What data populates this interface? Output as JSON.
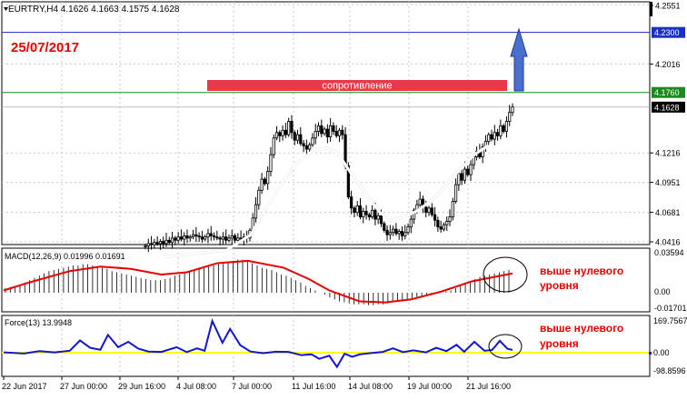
{
  "chart_window": {
    "symbol_bar": "EURTRY,H4  4.1626 4.1663 4.1575 4.1628",
    "date_label": "25/07/2017",
    "resistance_label": "сопротивление"
  },
  "colors": {
    "background": "#ffffff",
    "grid": "#c8c8c8",
    "candle": "#000000",
    "ma_line": "#ffffff",
    "level_top": "#1a2ec8",
    "level_resistance": "#1c8a1c",
    "resistance_box": "#e8394c",
    "arrow": "#4a6fd0",
    "macd_signal": "#e60000",
    "force_line": "#1515cc",
    "zero_line_force": "#ffff00",
    "annotation_text": "#e60000"
  },
  "chart_data": [
    {
      "type": "candlestick",
      "title": "EURTRY,H4",
      "ohlc_last": {
        "open": 4.1626,
        "high": 4.1663,
        "low": 4.1575,
        "close": 4.1628
      },
      "ylim": [
        4.0416,
        4.2551
      ],
      "y_ticks": [
        "4.2551",
        "4.2300",
        "4.2016",
        "4.1760",
        "4.1628",
        "4.1216",
        "4.0951",
        "4.0681",
        "4.0416"
      ],
      "horizontal_levels": [
        {
          "value": 4.23,
          "label": "4.2300"
        },
        {
          "value": 4.176,
          "label": "4.1760"
        },
        {
          "value": 4.1628,
          "label": "4.1628"
        }
      ],
      "closes": [
        4.038,
        4.04,
        4.039,
        4.041,
        4.04,
        4.042,
        4.04,
        4.043,
        4.041,
        4.045,
        4.043,
        4.046,
        4.044,
        4.047,
        4.045,
        4.046,
        4.048,
        4.047,
        4.046,
        4.044,
        4.046,
        4.049,
        4.047,
        4.046,
        4.045,
        4.044,
        4.046,
        4.043,
        4.045,
        4.047,
        4.043,
        4.045,
        4.044,
        4.046,
        4.045,
        4.052,
        4.063,
        4.075,
        4.088,
        4.098,
        4.094,
        4.105,
        4.12,
        4.135,
        4.14,
        4.137,
        4.142,
        4.138,
        4.15,
        4.14,
        4.133,
        4.138,
        4.13,
        4.128,
        4.125,
        4.129,
        4.135,
        4.141,
        4.146,
        4.139,
        4.143,
        4.136,
        4.146,
        4.141,
        4.137,
        4.142,
        4.138,
        4.11,
        4.082,
        4.072,
        4.068,
        4.074,
        4.064,
        4.069,
        4.066,
        4.064,
        4.07,
        4.062,
        4.065,
        4.058,
        4.052,
        4.048,
        4.05,
        4.053,
        4.049,
        4.051,
        4.047,
        4.05,
        4.055,
        4.062,
        4.07,
        4.075,
        4.08,
        4.073,
        4.068,
        4.072,
        4.066,
        4.061,
        4.055,
        4.053,
        4.057,
        4.06,
        4.064,
        4.078,
        4.093,
        4.103,
        4.097,
        4.107,
        4.102,
        4.111,
        4.118,
        4.123,
        4.118,
        4.127,
        4.132,
        4.138,
        4.134,
        4.14,
        4.137,
        4.146,
        4.141,
        4.15,
        4.158,
        4.163
      ],
      "moving_average": [
        {
          "x": 0.0,
          "y": 4.028
        },
        {
          "x": 0.18,
          "y": 4.034
        },
        {
          "x": 0.25,
          "y": 4.048
        },
        {
          "x": 0.28,
          "y": 4.065
        },
        {
          "x": 0.33,
          "y": 4.09
        },
        {
          "x": 0.38,
          "y": 4.112
        },
        {
          "x": 0.43,
          "y": 4.124
        },
        {
          "x": 0.47,
          "y": 4.126
        },
        {
          "x": 0.5,
          "y": 4.121
        },
        {
          "x": 0.54,
          "y": 4.102
        },
        {
          "x": 0.58,
          "y": 4.085
        },
        {
          "x": 0.62,
          "y": 4.068
        },
        {
          "x": 0.65,
          "y": 4.061
        },
        {
          "x": 0.69,
          "y": 4.064
        },
        {
          "x": 0.73,
          "y": 4.07
        },
        {
          "x": 0.78,
          "y": 4.082
        },
        {
          "x": 0.83,
          "y": 4.1
        },
        {
          "x": 0.89,
          "y": 4.12
        },
        {
          "x": 0.93,
          "y": 4.128
        }
      ]
    },
    {
      "type": "bar",
      "title": "MACD(12,26,9) 0.01996 0.01691",
      "ylim": [
        -0.01701,
        0.03594
      ],
      "y_ticks": [
        "0.03594",
        "0.00",
        "-0.01701"
      ],
      "histogram": [
        0.004,
        0.005,
        0.006,
        0.007,
        0.009,
        0.011,
        0.013,
        0.015,
        0.017,
        0.019,
        0.02,
        0.021,
        0.022,
        0.023,
        0.024,
        0.024,
        0.025,
        0.025,
        0.024,
        0.023,
        0.022,
        0.021,
        0.019,
        0.018,
        0.017,
        0.016,
        0.015,
        0.014,
        0.013,
        0.012,
        0.011,
        0.011,
        0.011,
        0.012,
        0.013,
        0.015,
        0.016,
        0.018,
        0.019,
        0.02,
        0.021,
        0.022,
        0.023,
        0.024,
        0.025,
        0.026,
        0.027,
        0.028,
        0.029,
        0.029,
        0.028,
        0.026,
        0.024,
        0.022,
        0.021,
        0.02,
        0.018,
        0.016,
        0.015,
        0.013,
        0.011,
        0.009,
        0.006,
        0.004,
        0.002,
        0.0,
        -0.002,
        -0.005,
        -0.007,
        -0.009,
        -0.01,
        -0.011,
        -0.012,
        -0.012,
        -0.012,
        -0.013,
        -0.013,
        -0.012,
        -0.012,
        -0.011,
        -0.01,
        -0.009,
        -0.008,
        -0.007,
        -0.006,
        -0.005,
        -0.004,
        -0.003,
        -0.002,
        -0.001,
        0.0,
        0.001,
        0.002,
        0.004,
        0.006,
        0.008,
        0.01,
        0.012,
        0.014,
        0.015,
        0.016,
        0.017,
        0.018,
        0.019,
        0.02
      ],
      "signal_line": [
        {
          "x": 0.0,
          "y": 0.002
        },
        {
          "x": 0.05,
          "y": 0.009
        },
        {
          "x": 0.13,
          "y": 0.019
        },
        {
          "x": 0.19,
          "y": 0.023
        },
        {
          "x": 0.25,
          "y": 0.021
        },
        {
          "x": 0.31,
          "y": 0.016
        },
        {
          "x": 0.36,
          "y": 0.018
        },
        {
          "x": 0.42,
          "y": 0.026
        },
        {
          "x": 0.48,
          "y": 0.028
        },
        {
          "x": 0.55,
          "y": 0.022
        },
        {
          "x": 0.6,
          "y": 0.012
        },
        {
          "x": 0.64,
          "y": 0.002
        },
        {
          "x": 0.7,
          "y": -0.009
        },
        {
          "x": 0.75,
          "y": -0.01
        },
        {
          "x": 0.8,
          "y": -0.007
        },
        {
          "x": 0.86,
          "y": 0.001
        },
        {
          "x": 0.92,
          "y": 0.01
        },
        {
          "x": 1.0,
          "y": 0.017
        }
      ],
      "annotation": "выше нулевого уровня"
    },
    {
      "type": "line",
      "title": "Force(13) 13.9948",
      "ylim": [
        -98.8596,
        169.7567
      ],
      "y_ticks": [
        "169.7567",
        "0.00",
        "-98.8596"
      ],
      "values": [
        {
          "x": 0.0,
          "y": 2
        },
        {
          "x": 0.04,
          "y": -4
        },
        {
          "x": 0.07,
          "y": 8
        },
        {
          "x": 0.1,
          "y": 2
        },
        {
          "x": 0.13,
          "y": 10
        },
        {
          "x": 0.15,
          "y": 62
        },
        {
          "x": 0.17,
          "y": 25
        },
        {
          "x": 0.19,
          "y": 15
        },
        {
          "x": 0.205,
          "y": 90
        },
        {
          "x": 0.225,
          "y": 28
        },
        {
          "x": 0.245,
          "y": 55
        },
        {
          "x": 0.265,
          "y": 20
        },
        {
          "x": 0.285,
          "y": 6
        },
        {
          "x": 0.31,
          "y": 4
        },
        {
          "x": 0.34,
          "y": 28
        },
        {
          "x": 0.36,
          "y": 3
        },
        {
          "x": 0.38,
          "y": 22
        },
        {
          "x": 0.395,
          "y": 10
        },
        {
          "x": 0.41,
          "y": 160
        },
        {
          "x": 0.43,
          "y": 50
        },
        {
          "x": 0.445,
          "y": 120
        },
        {
          "x": 0.465,
          "y": 38
        },
        {
          "x": 0.485,
          "y": 6
        },
        {
          "x": 0.51,
          "y": -2
        },
        {
          "x": 0.535,
          "y": 5
        },
        {
          "x": 0.56,
          "y": 4
        },
        {
          "x": 0.585,
          "y": -12
        },
        {
          "x": 0.605,
          "y": -8
        },
        {
          "x": 0.62,
          "y": -30
        },
        {
          "x": 0.64,
          "y": -15
        },
        {
          "x": 0.655,
          "y": -70
        },
        {
          "x": 0.67,
          "y": -5
        },
        {
          "x": 0.685,
          "y": -20
        },
        {
          "x": 0.7,
          "y": -8
        },
        {
          "x": 0.72,
          "y": -2
        },
        {
          "x": 0.745,
          "y": 4
        },
        {
          "x": 0.765,
          "y": 22
        },
        {
          "x": 0.785,
          "y": 3
        },
        {
          "x": 0.805,
          "y": 12
        },
        {
          "x": 0.83,
          "y": 2
        },
        {
          "x": 0.85,
          "y": 25
        },
        {
          "x": 0.87,
          "y": 8
        },
        {
          "x": 0.89,
          "y": 40
        },
        {
          "x": 0.905,
          "y": 5
        },
        {
          "x": 0.925,
          "y": 55
        },
        {
          "x": 0.945,
          "y": 10
        },
        {
          "x": 0.96,
          "y": 14
        },
        {
          "x": 0.975,
          "y": 60
        },
        {
          "x": 0.99,
          "y": 20
        },
        {
          "x": 1.0,
          "y": 14
        }
      ],
      "annotation": "выше нулевого уровня"
    }
  ],
  "x_axis": {
    "tick_labels": [
      "22 Jun 2017",
      "27 Jun 00:00",
      "29 Jun 16:00",
      "4 Jul 08:00",
      "7 Jul 00:00",
      "11 Jul 16:00",
      "14 Jul 08:00",
      "19 Jul 00:00",
      "21 Jul 16:00"
    ]
  }
}
